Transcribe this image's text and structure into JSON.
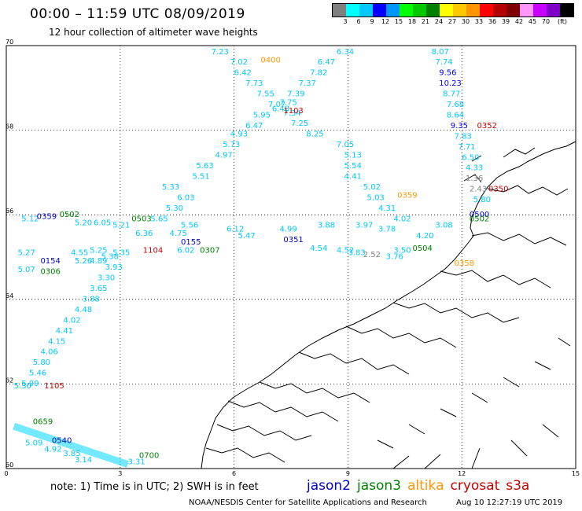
{
  "header": {
    "title": "00:00 – 11:59 UTC 08/09/2019",
    "subtitle": "12 hour collection of altimeter wave heights"
  },
  "colorbar": {
    "colors": [
      "#808080",
      "#00ffff",
      "#00c8ff",
      "#0000ff",
      "#0096ff",
      "#00ff00",
      "#00c800",
      "#008000",
      "#ffff00",
      "#ffc800",
      "#ff9600",
      "#ff0000",
      "#b40000",
      "#800000",
      "#ff96ff",
      "#c800ff",
      "#8000c8",
      "#000000"
    ],
    "labels": [
      "3",
      "6",
      "9",
      "12",
      "15",
      "18",
      "21",
      "24",
      "27",
      "30",
      "33",
      "36",
      "39",
      "42",
      "45",
      "70",
      "(ft)"
    ]
  },
  "axes": {
    "x_ticks": [
      "0",
      "3",
      "6",
      "9",
      "12",
      "15"
    ],
    "y_ticks": [
      "70",
      "68",
      "66",
      "64",
      "62",
      "60"
    ]
  },
  "chart_data": {
    "type": "scatter",
    "xlim": [
      0,
      15
    ],
    "ylim": [
      60,
      70
    ],
    "satellite_colors": {
      "jason2": "#0000c8",
      "jason3": "#008000",
      "altika": "#ff9600",
      "cryosat": "#c80000",
      "s3a": "#c80000"
    },
    "time_labels": [
      {
        "text": "0400",
        "x": 6.7,
        "y": 69.6,
        "sat": "altika"
      },
      {
        "text": "1103",
        "x": 7.3,
        "y": 68.4,
        "sat": "cryosat"
      },
      {
        "text": "0352",
        "x": 12.4,
        "y": 68.05,
        "sat": "cryosat"
      },
      {
        "text": "0359",
        "x": 10.3,
        "y": 66.4,
        "sat": "altika"
      },
      {
        "text": "0350",
        "x": 12.7,
        "y": 66.55,
        "sat": "cryosat"
      },
      {
        "text": "0500",
        "x": 12.2,
        "y": 65.95,
        "sat": "jason2"
      },
      {
        "text": "0502",
        "x": 12.2,
        "y": 65.85,
        "sat": "jason3"
      },
      {
        "text": "0359",
        "x": 0.8,
        "y": 65.9,
        "sat": "jason2"
      },
      {
        "text": "0502",
        "x": 1.4,
        "y": 65.95,
        "sat": "jason3"
      },
      {
        "text": "0503",
        "x": 3.3,
        "y": 65.85,
        "sat": "jason3"
      },
      {
        "text": "0155",
        "x": 4.6,
        "y": 65.3,
        "sat": "jason2"
      },
      {
        "text": "1104",
        "x": 3.6,
        "y": 65.1,
        "sat": "cryosat"
      },
      {
        "text": "0307",
        "x": 5.1,
        "y": 65.1,
        "sat": "jason3"
      },
      {
        "text": "0351",
        "x": 7.3,
        "y": 65.35,
        "sat": "jason2"
      },
      {
        "text": "0504",
        "x": 10.7,
        "y": 65.15,
        "sat": "jason3"
      },
      {
        "text": "0358",
        "x": 11.8,
        "y": 64.8,
        "sat": "altika"
      },
      {
        "text": "0154",
        "x": 0.9,
        "y": 64.85,
        "sat": "jason2"
      },
      {
        "text": "0306",
        "x": 0.9,
        "y": 64.6,
        "sat": "jason3"
      },
      {
        "text": "1105",
        "x": 1.0,
        "y": 61.9,
        "sat": "cryosat"
      },
      {
        "text": "0659",
        "x": 0.7,
        "y": 61.05,
        "sat": "jason3"
      },
      {
        "text": "0540",
        "x": 1.2,
        "y": 60.6,
        "sat": "jason2"
      },
      {
        "text": "0700",
        "x": 3.5,
        "y": 60.25,
        "sat": "jason3"
      }
    ],
    "swh_labels": [
      {
        "t": "7.23",
        "x": 5.4,
        "y": 69.8,
        "c": "#00c8ff"
      },
      {
        "t": "7.02",
        "x": 5.9,
        "y": 69.55,
        "c": "#00c8ff"
      },
      {
        "t": "6.42",
        "x": 6.0,
        "y": 69.3,
        "c": "#00c8ff"
      },
      {
        "t": "7.73",
        "x": 6.3,
        "y": 69.05,
        "c": "#00c8ff"
      },
      {
        "t": "7.55",
        "x": 6.6,
        "y": 68.8,
        "c": "#00c8ff"
      },
      {
        "t": "7.07",
        "x": 6.9,
        "y": 68.55,
        "c": "#00c8ff"
      },
      {
        "t": "6.48",
        "x": 7.0,
        "y": 68.45,
        "c": "#00c8ff"
      },
      {
        "t": "5.95",
        "x": 6.5,
        "y": 68.3,
        "c": "#00c8ff"
      },
      {
        "t": "6.47",
        "x": 6.3,
        "y": 68.05,
        "c": "#00c8ff"
      },
      {
        "t": "4.93",
        "x": 5.9,
        "y": 67.85,
        "c": "#00c8ff"
      },
      {
        "t": "5.73",
        "x": 5.7,
        "y": 67.6,
        "c": "#00c8ff"
      },
      {
        "t": "4.97",
        "x": 5.5,
        "y": 67.35,
        "c": "#00c8ff"
      },
      {
        "t": "5.63",
        "x": 5.0,
        "y": 67.1,
        "c": "#00c8ff"
      },
      {
        "t": "5.51",
        "x": 4.9,
        "y": 66.85,
        "c": "#00c8ff"
      },
      {
        "t": "5.33",
        "x": 4.1,
        "y": 66.6,
        "c": "#00c8ff"
      },
      {
        "t": "6.03",
        "x": 4.5,
        "y": 66.35,
        "c": "#00c8ff"
      },
      {
        "t": "5.30",
        "x": 4.2,
        "y": 66.1,
        "c": "#00c8ff"
      },
      {
        "t": "5.65",
        "x": 3.8,
        "y": 65.85,
        "c": "#00c8ff"
      },
      {
        "t": "6.34",
        "x": 8.7,
        "y": 69.8,
        "c": "#00c8ff"
      },
      {
        "t": "6.47",
        "x": 8.2,
        "y": 69.55,
        "c": "#00c8ff"
      },
      {
        "t": "7.82",
        "x": 8.0,
        "y": 69.3,
        "c": "#00c8ff"
      },
      {
        "t": "7.37",
        "x": 7.7,
        "y": 69.05,
        "c": "#00c8ff"
      },
      {
        "t": "7.39",
        "x": 7.4,
        "y": 68.8,
        "c": "#00c8ff"
      },
      {
        "t": "7.75",
        "x": 7.2,
        "y": 68.6,
        "c": "#00c8ff"
      },
      {
        "t": "7.34",
        "x": 7.3,
        "y": 68.35,
        "c": "#00c8ff"
      },
      {
        "t": "7.25",
        "x": 7.5,
        "y": 68.1,
        "c": "#00c8ff"
      },
      {
        "t": "8.25",
        "x": 7.9,
        "y": 67.85,
        "c": "#00c8ff"
      },
      {
        "t": "7.05",
        "x": 8.7,
        "y": 67.6,
        "c": "#00c8ff"
      },
      {
        "t": "5.13",
        "x": 8.9,
        "y": 67.35,
        "c": "#00c8ff"
      },
      {
        "t": "5.54",
        "x": 8.9,
        "y": 67.1,
        "c": "#00c8ff"
      },
      {
        "t": "4.41",
        "x": 8.9,
        "y": 66.85,
        "c": "#00c8ff"
      },
      {
        "t": "5.02",
        "x": 9.4,
        "y": 66.6,
        "c": "#00c8ff"
      },
      {
        "t": "5.03",
        "x": 9.5,
        "y": 66.35,
        "c": "#00c8ff"
      },
      {
        "t": "4.31",
        "x": 9.8,
        "y": 66.1,
        "c": "#00c8ff"
      },
      {
        "t": "4.02",
        "x": 10.2,
        "y": 65.85,
        "c": "#00c8ff"
      },
      {
        "t": "8.07",
        "x": 11.2,
        "y": 69.8,
        "c": "#00c8ff"
      },
      {
        "t": "7.74",
        "x": 11.3,
        "y": 69.55,
        "c": "#00c8ff"
      },
      {
        "t": "9.56",
        "x": 11.4,
        "y": 69.3,
        "c": "#0000ff"
      },
      {
        "t": "10.23",
        "x": 11.4,
        "y": 69.05,
        "c": "#0000ff"
      },
      {
        "t": "8.77",
        "x": 11.5,
        "y": 68.8,
        "c": "#00c8ff"
      },
      {
        "t": "7.68",
        "x": 11.6,
        "y": 68.55,
        "c": "#00c8ff"
      },
      {
        "t": "8.64",
        "x": 11.6,
        "y": 68.3,
        "c": "#00c8ff"
      },
      {
        "t": "9.35",
        "x": 11.7,
        "y": 68.05,
        "c": "#0000ff"
      },
      {
        "t": "7.83",
        "x": 11.8,
        "y": 67.8,
        "c": "#00c8ff"
      },
      {
        "t": "7.71",
        "x": 11.9,
        "y": 67.55,
        "c": "#00c8ff"
      },
      {
        "t": "6.50",
        "x": 12.0,
        "y": 67.3,
        "c": "#00c8ff"
      },
      {
        "t": "4.33",
        "x": 12.1,
        "y": 67.05,
        "c": "#00c8ff"
      },
      {
        "t": "1.36",
        "x": 12.1,
        "y": 66.8,
        "c": "#808080"
      },
      {
        "t": "2.43",
        "x": 12.2,
        "y": 66.55,
        "c": "#808080"
      },
      {
        "t": "5.80",
        "x": 12.3,
        "y": 66.3,
        "c": "#00c8ff"
      },
      {
        "t": "5.12",
        "x": 0.4,
        "y": 65.85,
        "c": "#00c8ff"
      },
      {
        "t": "5.20",
        "x": 1.8,
        "y": 65.75,
        "c": "#00c8ff"
      },
      {
        "t": "6.05",
        "x": 2.3,
        "y": 65.75,
        "c": "#00c8ff"
      },
      {
        "t": "5.21",
        "x": 2.8,
        "y": 65.7,
        "c": "#00c8ff"
      },
      {
        "t": "5.56",
        "x": 4.6,
        "y": 65.7,
        "c": "#00c8ff"
      },
      {
        "t": "6.12",
        "x": 5.8,
        "y": 65.6,
        "c": "#00c8ff"
      },
      {
        "t": "4.99",
        "x": 7.2,
        "y": 65.6,
        "c": "#00c8ff"
      },
      {
        "t": "3.88",
        "x": 8.2,
        "y": 65.7,
        "c": "#00c8ff"
      },
      {
        "t": "3.97",
        "x": 9.2,
        "y": 65.7,
        "c": "#00c8ff"
      },
      {
        "t": "3.78",
        "x": 9.8,
        "y": 65.6,
        "c": "#00c8ff"
      },
      {
        "t": "3.08",
        "x": 11.3,
        "y": 65.7,
        "c": "#00c8ff"
      },
      {
        "t": "4.20",
        "x": 10.8,
        "y": 65.45,
        "c": "#00c8ff"
      },
      {
        "t": "6.36",
        "x": 3.4,
        "y": 65.5,
        "c": "#00c8ff"
      },
      {
        "t": "4.75",
        "x": 4.3,
        "y": 65.5,
        "c": "#00c8ff"
      },
      {
        "t": "5.47",
        "x": 6.1,
        "y": 65.45,
        "c": "#00c8ff"
      },
      {
        "t": "4.55",
        "x": 1.7,
        "y": 65.05,
        "c": "#00c8ff"
      },
      {
        "t": "5.27",
        "x": 0.3,
        "y": 65.05,
        "c": "#00c8ff"
      },
      {
        "t": "5.25",
        "x": 2.2,
        "y": 65.1,
        "c": "#00c8ff"
      },
      {
        "t": "5.35",
        "x": 2.8,
        "y": 65.05,
        "c": "#00c8ff"
      },
      {
        "t": "5.38",
        "x": 2.5,
        "y": 64.95,
        "c": "#00c8ff"
      },
      {
        "t": "4.89",
        "x": 2.2,
        "y": 64.85,
        "c": "#00c8ff"
      },
      {
        "t": "5.26",
        "x": 1.8,
        "y": 64.85,
        "c": "#00c8ff"
      },
      {
        "t": "6.02",
        "x": 4.5,
        "y": 65.1,
        "c": "#00c8ff"
      },
      {
        "t": "4.54",
        "x": 8.0,
        "y": 65.15,
        "c": "#00c8ff"
      },
      {
        "t": "4.52",
        "x": 8.7,
        "y": 65.1,
        "c": "#00c8ff"
      },
      {
        "t": "3.83",
        "x": 9.0,
        "y": 65.05,
        "c": "#00c8ff"
      },
      {
        "t": "2.52",
        "x": 9.4,
        "y": 65.0,
        "c": "#808080"
      },
      {
        "t": "3.50",
        "x": 10.2,
        "y": 65.1,
        "c": "#00c8ff"
      },
      {
        "t": "3.76",
        "x": 10.0,
        "y": 64.95,
        "c": "#00c8ff"
      },
      {
        "t": "5.07",
        "x": 0.3,
        "y": 64.65,
        "c": "#00c8ff"
      },
      {
        "t": "3.93",
        "x": 2.6,
        "y": 64.7,
        "c": "#00c8ff"
      },
      {
        "t": "3.30",
        "x": 2.4,
        "y": 64.45,
        "c": "#00c8ff"
      },
      {
        "t": "3.65",
        "x": 2.2,
        "y": 64.2,
        "c": "#00c8ff"
      },
      {
        "t": "3.88",
        "x": 2.0,
        "y": 63.95,
        "c": "#00c8ff"
      },
      {
        "t": "4.48",
        "x": 1.8,
        "y": 63.7,
        "c": "#00c8ff"
      },
      {
        "t": "4.02",
        "x": 1.5,
        "y": 63.45,
        "c": "#00c8ff"
      },
      {
        "t": "4.41",
        "x": 1.3,
        "y": 63.2,
        "c": "#00c8ff"
      },
      {
        "t": "4.15",
        "x": 1.1,
        "y": 62.95,
        "c": "#00c8ff"
      },
      {
        "t": "4.06",
        "x": 0.9,
        "y": 62.7,
        "c": "#00c8ff"
      },
      {
        "t": "5.80",
        "x": 0.7,
        "y": 62.45,
        "c": "#00c8ff"
      },
      {
        "t": "5.46",
        "x": 0.6,
        "y": 62.2,
        "c": "#00c8ff"
      },
      {
        "t": "5.99",
        "x": 0.4,
        "y": 61.95,
        "c": "#00c8ff"
      },
      {
        "t": "5.30",
        "x": 0.2,
        "y": 61.9,
        "c": "#00c8ff"
      },
      {
        "t": "5.09",
        "x": 0.5,
        "y": 60.55,
        "c": "#00c8ff"
      },
      {
        "t": "4.92",
        "x": 1.0,
        "y": 60.4,
        "c": "#00c8ff"
      },
      {
        "t": "3.85",
        "x": 1.5,
        "y": 60.3,
        "c": "#00c8ff"
      },
      {
        "t": "3.14",
        "x": 1.8,
        "y": 60.15,
        "c": "#00c8ff"
      },
      {
        "t": "3.31",
        "x": 3.2,
        "y": 60.1,
        "c": "#00c8ff"
      }
    ]
  },
  "footer": {
    "note": "note:  1) Time is in UTC;  2) SWH is in feet",
    "credit": "NOAA/NESDIS Center for Satellite Applications and Research",
    "timestamp": "Aug 10 12:27:19 UTC 2019"
  },
  "legend": [
    {
      "name": "jason2",
      "color": "#0000c8"
    },
    {
      "name": "jason3",
      "color": "#008000"
    },
    {
      "name": "altika",
      "color": "#ff9600"
    },
    {
      "name": "cryosat",
      "color": "#c80000"
    },
    {
      "name": "s3a",
      "color": "#c80000"
    }
  ]
}
